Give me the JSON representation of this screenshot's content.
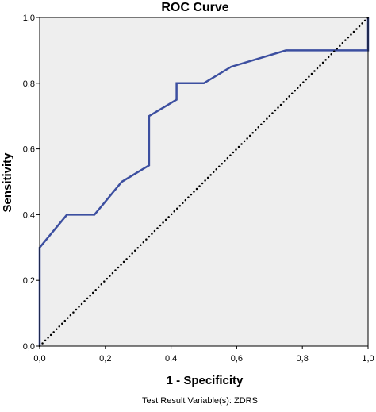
{
  "chart_data": {
    "type": "line",
    "title": "ROC Curve",
    "xlabel": "1 - Specificity",
    "ylabel": "Sensitivity",
    "xlim": [
      0,
      1
    ],
    "ylim": [
      0,
      1
    ],
    "x_ticks": [
      "0,0",
      "0,2",
      "0,4",
      "0,6",
      "0,8",
      "1,0"
    ],
    "y_ticks": [
      "0,0",
      "0,2",
      "0,4",
      "0,6",
      "0,8",
      "1,0"
    ],
    "grid": false,
    "plot_background": "#eeeeee",
    "series": [
      {
        "color": "#3c4fa0",
        "style": "solid",
        "x": [
          0,
          0,
          0.083,
          0.167,
          0.25,
          0.333,
          0.333,
          0.417,
          0.417,
          0.5,
          0.583,
          0.75,
          1,
          1
        ],
        "y": [
          0,
          0.3,
          0.4,
          0.4,
          0.5,
          0.55,
          0.7,
          0.75,
          0.8,
          0.8,
          0.85,
          0.9,
          0.9,
          1
        ]
      },
      {
        "color": "#000000",
        "style": "dotted",
        "x": [
          0,
          1
        ],
        "y": [
          0,
          1
        ]
      }
    ],
    "footnote": "Test Result Variable(s):   ZDRS"
  }
}
